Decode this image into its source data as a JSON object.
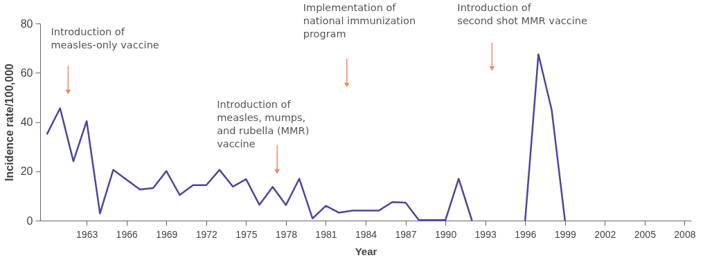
{
  "chart_data": {
    "type": "line",
    "xlabel": "Year",
    "ylabel": "Incidence rate/100,000",
    "x": [
      1960,
      1961,
      1962,
      1963,
      1964,
      1965,
      1966,
      1967,
      1968,
      1969,
      1970,
      1971,
      1972,
      1973,
      1974,
      1975,
      1976,
      1977,
      1978,
      1979,
      1980,
      1981,
      1982,
      1983,
      1984,
      1985,
      1986,
      1987,
      1988,
      1989,
      1990,
      1991,
      1992,
      1993,
      1994,
      1995,
      1996,
      1997,
      1998,
      1999
    ],
    "series": [
      {
        "color": "#4b45a3",
        "values": [
          35,
          45.6,
          24.1,
          40.4,
          2.9,
          20.6,
          16.6,
          12.6,
          13.2,
          20.1,
          10.4,
          14.4,
          14.4,
          20.6,
          13.8,
          16.8,
          6.4,
          13.7,
          6.3,
          17,
          0.9,
          6,
          3.2,
          4.1,
          4.1,
          4.1,
          7.5,
          7.3,
          0.2,
          0.2,
          0.2,
          17,
          0,
          null,
          null,
          null,
          0,
          67.5,
          44.9,
          0
        ]
      }
    ],
    "xlim": [
      1959.5,
      2008.5
    ],
    "xticks": [
      1963,
      1966,
      1969,
      1972,
      1975,
      1978,
      1981,
      1984,
      1987,
      1990,
      1993,
      1996,
      1999,
      2002,
      2005,
      2008
    ],
    "ylim": [
      0,
      80
    ],
    "yticks": [
      0,
      20,
      40,
      60,
      80
    ],
    "grid": false,
    "marker": "none",
    "line_style": "solid",
    "annotations": [
      "Introduction of\nmeasles-only vaccine",
      "Introduction of\nmeasles, mumps,\nand rubella (MMR)\nvaccine",
      "Implementation of\nnational immunization\nprogram",
      "Introduction of\nsecond shot MMR vaccine"
    ]
  }
}
